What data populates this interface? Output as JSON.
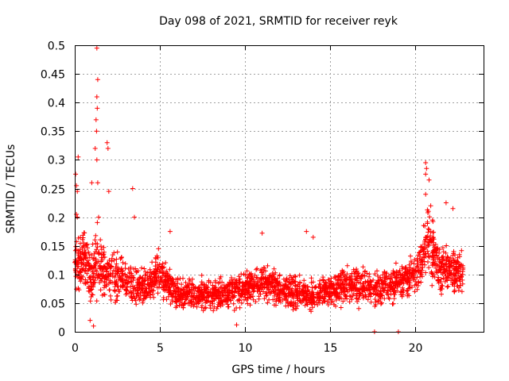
{
  "chart_data": {
    "type": "scatter",
    "title": "Day 098 of 2021, SRMTID for receiver reyk",
    "xlabel": "GPS time / hours",
    "ylabel": "SRMTID / TECUs",
    "xlim": [
      0,
      24
    ],
    "ylim": [
      0,
      0.5
    ],
    "grid": true,
    "marker": "+",
    "series_color": "#ff0000",
    "x_ticks": [
      0,
      5,
      10,
      15,
      20
    ],
    "x_tick_labels": [
      "0",
      "5",
      "10",
      "15",
      "20"
    ],
    "y_ticks": [
      0,
      0.05,
      0.1,
      0.15,
      0.2,
      0.25,
      0.3,
      0.35,
      0.4,
      0.45,
      0.5
    ],
    "y_tick_labels": [
      "0",
      "0.05",
      "0.1",
      "0.15",
      "0.2",
      "0.25",
      "0.3",
      "0.35",
      "0.4",
      "0.45",
      "0.5"
    ],
    "x_range_observed": [
      0,
      22.8
    ],
    "trend": [
      {
        "t": 0.0,
        "level": 0.12,
        "spread": 0.07
      },
      {
        "t": 0.5,
        "level": 0.13,
        "spread": 0.07
      },
      {
        "t": 1.0,
        "level": 0.09,
        "spread": 0.06
      },
      {
        "t": 1.3,
        "level": 0.12,
        "spread": 0.08
      },
      {
        "t": 2.0,
        "level": 0.1,
        "spread": 0.06
      },
      {
        "t": 3.0,
        "level": 0.09,
        "spread": 0.05
      },
      {
        "t": 4.0,
        "level": 0.075,
        "spread": 0.04
      },
      {
        "t": 5.0,
        "level": 0.1,
        "spread": 0.05
      },
      {
        "t": 6.0,
        "level": 0.065,
        "spread": 0.035
      },
      {
        "t": 8.0,
        "level": 0.065,
        "spread": 0.035
      },
      {
        "t": 10.0,
        "level": 0.075,
        "spread": 0.04
      },
      {
        "t": 11.0,
        "level": 0.085,
        "spread": 0.045
      },
      {
        "t": 12.5,
        "level": 0.07,
        "spread": 0.04
      },
      {
        "t": 14.0,
        "level": 0.065,
        "spread": 0.035
      },
      {
        "t": 16.0,
        "level": 0.08,
        "spread": 0.04
      },
      {
        "t": 18.0,
        "level": 0.075,
        "spread": 0.04
      },
      {
        "t": 20.0,
        "level": 0.1,
        "spread": 0.045
      },
      {
        "t": 20.7,
        "level": 0.16,
        "spread": 0.08
      },
      {
        "t": 21.5,
        "level": 0.11,
        "spread": 0.06
      },
      {
        "t": 22.8,
        "level": 0.1,
        "spread": 0.05
      }
    ],
    "notable_points": [
      {
        "x": 1.3,
        "y": 0.495
      },
      {
        "x": 1.35,
        "y": 0.44
      },
      {
        "x": 1.3,
        "y": 0.41
      },
      {
        "x": 1.32,
        "y": 0.39
      },
      {
        "x": 1.25,
        "y": 0.37
      },
      {
        "x": 1.28,
        "y": 0.35
      },
      {
        "x": 1.2,
        "y": 0.32
      },
      {
        "x": 1.3,
        "y": 0.3
      },
      {
        "x": 1.35,
        "y": 0.26
      },
      {
        "x": 1.9,
        "y": 0.33
      },
      {
        "x": 1.95,
        "y": 0.32
      },
      {
        "x": 0.2,
        "y": 0.305
      },
      {
        "x": 0.05,
        "y": 0.275
      },
      {
        "x": 0.1,
        "y": 0.255
      },
      {
        "x": 0.15,
        "y": 0.245
      },
      {
        "x": 0.1,
        "y": 0.205
      },
      {
        "x": 0.15,
        "y": 0.2
      },
      {
        "x": 1.0,
        "y": 0.26
      },
      {
        "x": 1.4,
        "y": 0.2
      },
      {
        "x": 3.4,
        "y": 0.25
      },
      {
        "x": 3.5,
        "y": 0.2
      },
      {
        "x": 2.0,
        "y": 0.245
      },
      {
        "x": 5.6,
        "y": 0.175
      },
      {
        "x": 11.0,
        "y": 0.172
      },
      {
        "x": 13.6,
        "y": 0.175
      },
      {
        "x": 14.0,
        "y": 0.165
      },
      {
        "x": 20.6,
        "y": 0.295
      },
      {
        "x": 20.65,
        "y": 0.285
      },
      {
        "x": 20.6,
        "y": 0.275
      },
      {
        "x": 20.8,
        "y": 0.265
      },
      {
        "x": 20.6,
        "y": 0.24
      },
      {
        "x": 20.9,
        "y": 0.22
      },
      {
        "x": 21.0,
        "y": 0.195
      },
      {
        "x": 21.8,
        "y": 0.225
      },
      {
        "x": 22.2,
        "y": 0.215
      },
      {
        "x": 0.9,
        "y": 0.02
      },
      {
        "x": 1.1,
        "y": 0.01
      },
      {
        "x": 9.5,
        "y": 0.012
      },
      {
        "x": 17.6,
        "y": 0.0
      },
      {
        "x": 19.0,
        "y": 0.0
      }
    ]
  }
}
